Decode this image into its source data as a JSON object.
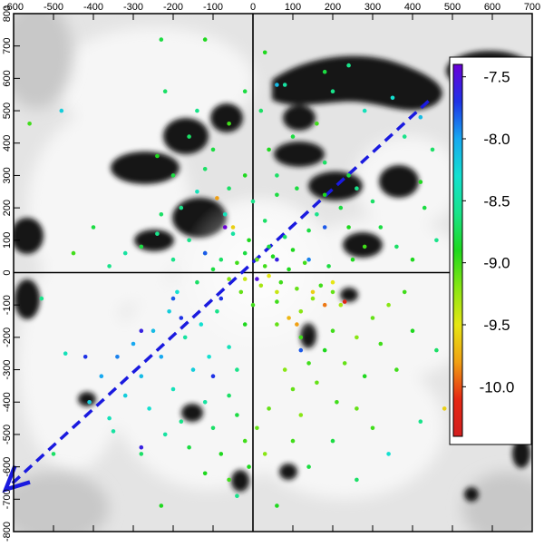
{
  "chart_data": {
    "type": "scatter",
    "title": "",
    "xlabel": "",
    "ylabel": "",
    "xlim": [
      -600,
      700
    ],
    "ylim": [
      -800,
      800
    ],
    "x_ticks": [
      -600,
      -500,
      -400,
      -300,
      -200,
      -100,
      0,
      100,
      200,
      300,
      400,
      500,
      600,
      700
    ],
    "y_ticks": [
      -800,
      -700,
      -600,
      -500,
      -400,
      -300,
      -200,
      -100,
      0,
      100,
      200,
      300,
      400,
      500,
      600,
      700,
      800
    ],
    "grid": false,
    "background": "grayscale extinction map (white = low, black = dense clouds) centred on origin",
    "reference_lines": [
      {
        "name": "x-axis-line",
        "from": [
          -600,
          0
        ],
        "to": [
          500,
          0
        ],
        "color": "#000000"
      },
      {
        "name": "y-axis-line",
        "from": [
          0,
          -800
        ],
        "to": [
          0,
          800
        ],
        "color": "#000000"
      }
    ],
    "direction_arrow": {
      "style": "dashed",
      "color": "#1a1adf",
      "from": [
        440,
        530
      ],
      "to": [
        -620,
        -670
      ]
    },
    "colorbar": {
      "position": "right",
      "range": [
        -10.4,
        -7.4
      ],
      "ticks": [
        "-7.5",
        "-8.0",
        "-8.5",
        "-9.0",
        "-9.5",
        "-10.0"
      ],
      "tick_values": [
        -7.5,
        -8.0,
        -8.5,
        -9.0,
        -9.5,
        -10.0
      ],
      "colormap": [
        "#6a00d8",
        "#1e32e6",
        "#17a8f0",
        "#13e0d0",
        "#19e38a",
        "#1ed81e",
        "#88e614",
        "#e6e614",
        "#f0a014",
        "#e62814",
        "#d21e1e"
      ]
    },
    "series": [
      {
        "points": [
          [
            -40,
            30,
            -9.0
          ],
          [
            -20,
            60,
            -8.8
          ],
          [
            10,
            40,
            -9.1
          ],
          [
            30,
            20,
            -9.0
          ],
          [
            50,
            50,
            -8.9
          ],
          [
            -60,
            -20,
            -9.2
          ],
          [
            70,
            -30,
            -9.0
          ],
          [
            90,
            10,
            -8.9
          ],
          [
            110,
            -50,
            -9.1
          ],
          [
            -80,
            40,
            -8.7
          ],
          [
            20,
            -40,
            -9.3
          ],
          [
            40,
            80,
            -8.8
          ],
          [
            -10,
            100,
            -8.9
          ],
          [
            130,
            30,
            -9.0
          ],
          [
            150,
            -80,
            -9.2
          ],
          [
            -100,
            10,
            -8.8
          ],
          [
            60,
            -90,
            -9.0
          ],
          [
            80,
            110,
            -8.7
          ],
          [
            -30,
            -60,
            -9.1
          ],
          [
            100,
            70,
            -8.9
          ],
          [
            170,
            -40,
            -9.0
          ],
          [
            190,
            20,
            -8.8
          ],
          [
            -120,
            60,
            -8.6
          ],
          [
            0,
            -100,
            -9.0
          ],
          [
            -50,
            120,
            -8.5
          ],
          [
            120,
            -120,
            -9.2
          ],
          [
            200,
            -60,
            -9.1
          ],
          [
            220,
            -100,
            -9.3
          ],
          [
            -140,
            -30,
            -8.7
          ],
          [
            140,
            130,
            -8.8
          ],
          [
            -160,
            100,
            -8.6
          ],
          [
            30,
            160,
            -8.7
          ],
          [
            -70,
            180,
            -8.4
          ],
          [
            160,
            180,
            -8.6
          ],
          [
            250,
            40,
            -8.9
          ],
          [
            -200,
            40,
            -8.6
          ],
          [
            60,
            -160,
            -9.1
          ],
          [
            -20,
            -160,
            -8.9
          ],
          [
            120,
            -200,
            -9.0
          ],
          [
            -90,
            -120,
            -8.6
          ],
          [
            -130,
            -160,
            -8.3
          ],
          [
            -170,
            -200,
            -8.5
          ],
          [
            -210,
            -120,
            -8.2
          ],
          [
            -190,
            -60,
            -8.3
          ],
          [
            -250,
            -180,
            -8.1
          ],
          [
            -60,
            -230,
            -8.4
          ],
          [
            -110,
            -260,
            -8.3
          ],
          [
            -150,
            -300,
            -8.2
          ],
          [
            -230,
            -260,
            -8.0
          ],
          [
            -40,
            -300,
            -8.6
          ],
          [
            -280,
            -320,
            -8.1
          ],
          [
            -200,
            -360,
            -8.4
          ],
          [
            -120,
            -400,
            -8.5
          ],
          [
            -60,
            -380,
            -8.7
          ],
          [
            -300,
            -220,
            -8.0
          ],
          [
            -340,
            -260,
            -7.9
          ],
          [
            -260,
            -420,
            -8.3
          ],
          [
            -180,
            -460,
            -8.6
          ],
          [
            -100,
            -480,
            -8.7
          ],
          [
            -40,
            -440,
            -8.8
          ],
          [
            -320,
            -380,
            -8.2
          ],
          [
            -380,
            -320,
            -8.0
          ],
          [
            -160,
            -540,
            -8.8
          ],
          [
            -80,
            -560,
            -8.9
          ],
          [
            -220,
            -500,
            -8.5
          ],
          [
            -360,
            -450,
            -8.4
          ],
          [
            -280,
            -560,
            -8.7
          ],
          [
            -410,
            -400,
            -8.2
          ],
          [
            -120,
            -620,
            -8.9
          ],
          [
            -60,
            -640,
            -9.0
          ],
          [
            -20,
            -520,
            -9.0
          ],
          [
            10,
            -480,
            -9.1
          ],
          [
            40,
            -420,
            -9.1
          ],
          [
            -10,
            -600,
            -8.9
          ],
          [
            30,
            -560,
            -9.2
          ],
          [
            80,
            -300,
            -9.2
          ],
          [
            100,
            -360,
            -9.1
          ],
          [
            140,
            -280,
            -9.0
          ],
          [
            180,
            -240,
            -8.9
          ],
          [
            160,
            -340,
            -9.1
          ],
          [
            200,
            -180,
            -9.0
          ],
          [
            230,
            -280,
            -9.1
          ],
          [
            260,
            -200,
            -9.2
          ],
          [
            210,
            -400,
            -9.0
          ],
          [
            120,
            -440,
            -9.2
          ],
          [
            300,
            -140,
            -9.1
          ],
          [
            320,
            -220,
            -9.0
          ],
          [
            280,
            -320,
            -8.9
          ],
          [
            260,
            -420,
            -9.1
          ],
          [
            340,
            -100,
            -9.2
          ],
          [
            380,
            -60,
            -9.0
          ],
          [
            360,
            -300,
            -9.0
          ],
          [
            400,
            -180,
            -8.9
          ],
          [
            300,
            -480,
            -9.0
          ],
          [
            200,
            -520,
            -8.8
          ],
          [
            150,
            -60,
            -9.6
          ],
          [
            230,
            -90,
            -10.2
          ],
          [
            180,
            -100,
            -9.9
          ],
          [
            90,
            -140,
            -9.7
          ],
          [
            200,
            -30,
            -9.5
          ],
          [
            60,
            -60,
            -9.4
          ],
          [
            -20,
            -20,
            -9.4
          ],
          [
            40,
            -10,
            -9.5
          ],
          [
            -50,
            140,
            -9.6
          ],
          [
            110,
            -160,
            -9.8
          ],
          [
            -90,
            230,
            -9.8
          ],
          [
            -240,
            120,
            -8.6
          ],
          [
            -280,
            80,
            -8.8
          ],
          [
            -230,
            180,
            -8.7
          ],
          [
            -320,
            60,
            -8.5
          ],
          [
            -180,
            200,
            -8.6
          ],
          [
            -140,
            250,
            -8.4
          ],
          [
            -60,
            260,
            -8.7
          ],
          [
            0,
            220,
            -8.6
          ],
          [
            60,
            240,
            -8.8
          ],
          [
            -20,
            300,
            -8.9
          ],
          [
            60,
            300,
            -8.7
          ],
          [
            110,
            260,
            -8.8
          ],
          [
            180,
            240,
            -8.9
          ],
          [
            220,
            200,
            -8.8
          ],
          [
            260,
            260,
            -8.6
          ],
          [
            300,
            220,
            -8.7
          ],
          [
            240,
            140,
            -8.9
          ],
          [
            320,
            140,
            -8.8
          ],
          [
            360,
            80,
            -8.7
          ],
          [
            280,
            80,
            -9.0
          ],
          [
            400,
            40,
            -8.9
          ],
          [
            -120,
            320,
            -8.7
          ],
          [
            -200,
            300,
            -8.8
          ],
          [
            -240,
            360,
            -8.9
          ],
          [
            -160,
            420,
            -8.7
          ],
          [
            -100,
            380,
            -8.8
          ],
          [
            40,
            380,
            -8.9
          ],
          [
            100,
            420,
            -8.8
          ],
          [
            180,
            340,
            -8.7
          ],
          [
            240,
            300,
            -8.8
          ],
          [
            -60,
            460,
            -9.0
          ],
          [
            20,
            500,
            -8.7
          ],
          [
            -20,
            560,
            -8.8
          ],
          [
            80,
            580,
            -8.5
          ],
          [
            -140,
            500,
            -8.6
          ],
          [
            -220,
            560,
            -8.7
          ],
          [
            200,
            560,
            -8.6
          ],
          [
            280,
            500,
            -8.4
          ],
          [
            160,
            460,
            -9.0
          ],
          [
            -120,
            720,
            -8.9
          ],
          [
            -230,
            720,
            -8.8
          ],
          [
            30,
            680,
            -8.9
          ],
          [
            180,
            620,
            -8.8
          ],
          [
            240,
            640,
            -8.6
          ],
          [
            -560,
            460,
            -9.0
          ],
          [
            -480,
            500,
            -8.2
          ],
          [
            -450,
            60,
            -9.0
          ],
          [
            -400,
            140,
            -8.8
          ],
          [
            -360,
            20,
            -8.6
          ],
          [
            -530,
            -80,
            -8.6
          ],
          [
            -470,
            -250,
            -8.4
          ],
          [
            -500,
            -560,
            -8.7
          ],
          [
            -350,
            -490,
            -8.5
          ],
          [
            -230,
            -720,
            -8.9
          ],
          [
            350,
            540,
            -8.3
          ],
          [
            420,
            480,
            -8.1
          ],
          [
            450,
            380,
            -8.7
          ],
          [
            380,
            420,
            -8.6
          ],
          [
            420,
            280,
            -8.9
          ],
          [
            430,
            200,
            -8.8
          ],
          [
            460,
            100,
            -8.6
          ],
          [
            580,
            160,
            -9.0
          ],
          [
            560,
            -20,
            -8.8
          ],
          [
            500,
            -80,
            -8.9
          ],
          [
            460,
            -240,
            -8.7
          ],
          [
            520,
            -380,
            -8.6
          ],
          [
            480,
            -420,
            -9.6
          ],
          [
            420,
            -460,
            -8.6
          ],
          [
            340,
            -560,
            -8.3
          ],
          [
            260,
            -640,
            -8.7
          ],
          [
            100,
            -520,
            -9.0
          ],
          [
            140,
            -600,
            -8.8
          ],
          [
            60,
            -720,
            -8.9
          ],
          [
            -40,
            -690,
            -8.6
          ],
          [
            60,
            580,
            -8.1
          ],
          [
            -70,
            140,
            -7.4
          ],
          [
            -120,
            60,
            -7.8
          ],
          [
            -80,
            -80,
            -7.7
          ],
          [
            -200,
            -80,
            -7.8
          ],
          [
            -180,
            -140,
            -7.7
          ],
          [
            -280,
            -180,
            -7.6
          ],
          [
            -100,
            -320,
            -7.7
          ],
          [
            -280,
            -540,
            -7.6
          ],
          [
            -420,
            -260,
            -7.7
          ],
          [
            140,
            40,
            -7.9
          ],
          [
            180,
            140,
            -7.8
          ],
          [
            120,
            -240,
            -7.8
          ],
          [
            60,
            40,
            -7.6
          ],
          [
            10,
            -20,
            -7.5
          ]
        ]
      }
    ]
  }
}
